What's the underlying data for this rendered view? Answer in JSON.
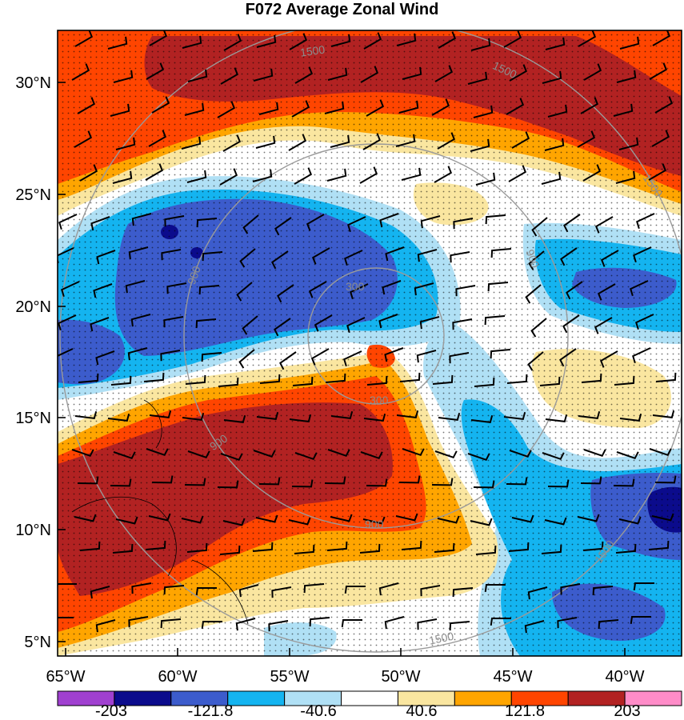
{
  "title": "F072 Average Zonal Wind",
  "lat_labels": [
    "30°N",
    "25°N",
    "20°N",
    "15°N",
    "10°N",
    "5°N"
  ],
  "lon_labels": [
    "65°W",
    "60°W",
    "55°W",
    "50°W",
    "45°W",
    "40°W"
  ],
  "ring_labels": [
    "300",
    "300",
    "900",
    "900",
    "900",
    "900",
    "1500",
    "1500",
    "1500",
    "1500",
    "1500"
  ],
  "colorbar": {
    "colors": [
      "#a040d0",
      "#0b0b8c",
      "#3c5ccc",
      "#14b4f0",
      "#b0e0f5",
      "#ffffff",
      "#fae6a0",
      "#ffa500",
      "#ff4500",
      "#b22222",
      "#ff8cc8"
    ],
    "tick_labels": [
      "-203",
      "-121.8",
      "-40.6",
      "40.6",
      "121.8",
      "203"
    ]
  },
  "colors": {
    "background_field": "#ffffff",
    "range_rings": "#9a9a9a"
  }
}
